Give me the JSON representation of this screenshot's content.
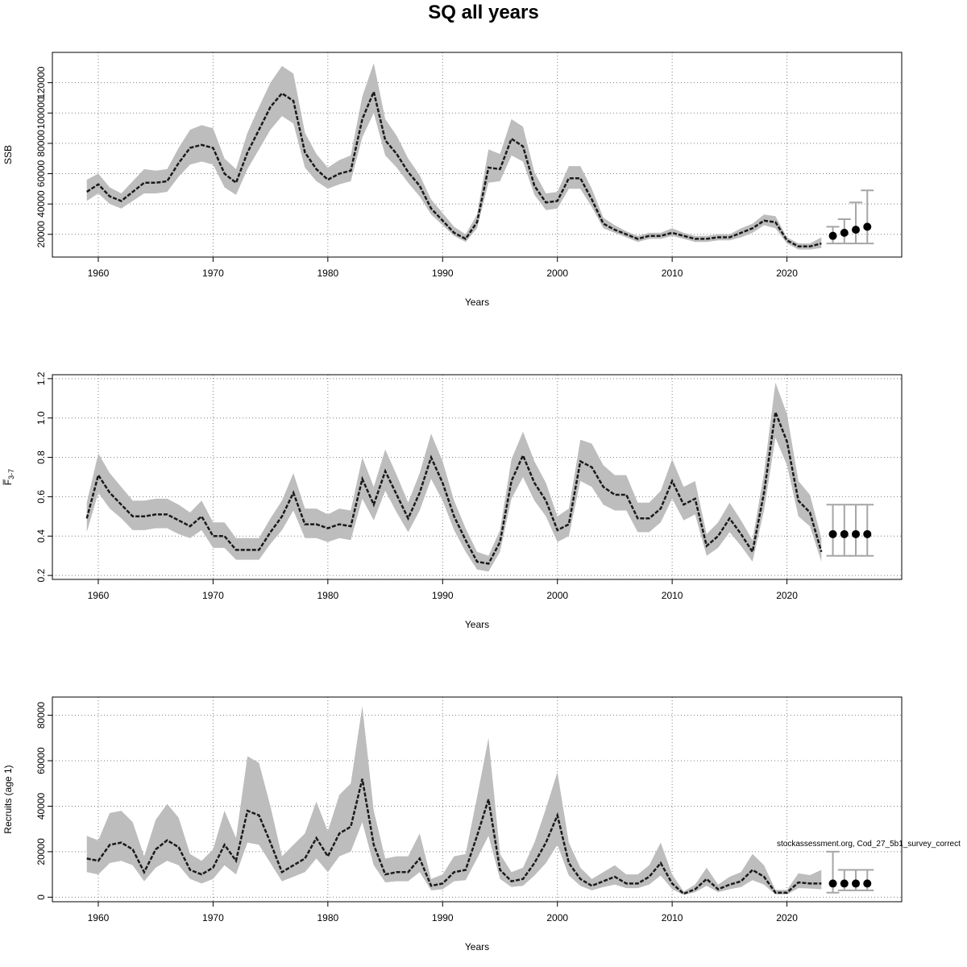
{
  "title": "SQ all years",
  "watermark": "stockassessment.org, Cod_27_5b1_survey_correct",
  "chart_data": [
    {
      "type": "line",
      "name": "ssb-panel",
      "ylabel": "SSB",
      "xlabel": "Years",
      "xlim": [
        1956,
        2030
      ],
      "ylim": [
        5000,
        140000
      ],
      "xticks": [
        1960,
        1970,
        1980,
        1990,
        2000,
        2010,
        2020
      ],
      "yticks": [
        20000,
        40000,
        60000,
        80000,
        100000,
        120000
      ],
      "grid": true,
      "x": [
        1959,
        1960,
        1961,
        1962,
        1963,
        1964,
        1965,
        1966,
        1967,
        1968,
        1969,
        1970,
        1971,
        1972,
        1973,
        1974,
        1975,
        1976,
        1977,
        1978,
        1979,
        1980,
        1981,
        1982,
        1983,
        1984,
        1985,
        1986,
        1987,
        1988,
        1989,
        1990,
        1991,
        1992,
        1993,
        1994,
        1995,
        1996,
        1997,
        1998,
        1999,
        2000,
        2001,
        2002,
        2003,
        2004,
        2005,
        2006,
        2007,
        2008,
        2009,
        2010,
        2011,
        2012,
        2013,
        2014,
        2015,
        2016,
        2017,
        2018,
        2019,
        2020,
        2021,
        2022,
        2023
      ],
      "y": [
        48000,
        53000,
        45000,
        42000,
        48000,
        54000,
        54000,
        55000,
        67000,
        77000,
        79000,
        77000,
        60000,
        54000,
        74000,
        89000,
        104000,
        113000,
        108000,
        74000,
        63000,
        56000,
        60000,
        62000,
        96000,
        114000,
        82000,
        73000,
        61000,
        52000,
        37000,
        29000,
        21000,
        17000,
        28000,
        64000,
        63000,
        83000,
        78000,
        52000,
        41000,
        42000,
        57000,
        57000,
        43000,
        27000,
        23000,
        20000,
        17000,
        19000,
        19000,
        21000,
        19000,
        17000,
        17000,
        18000,
        18000,
        21000,
        24000,
        29000,
        28000,
        16000,
        12000,
        12000,
        14000
      ],
      "lower": [
        42000,
        47000,
        40000,
        37000,
        42000,
        47000,
        47000,
        48000,
        58000,
        66000,
        68000,
        66000,
        51000,
        46000,
        63000,
        76000,
        89000,
        98000,
        93000,
        64000,
        55000,
        50000,
        53000,
        55000,
        84000,
        100000,
        72000,
        64000,
        54000,
        45000,
        33000,
        26000,
        19000,
        15000,
        24000,
        54000,
        55000,
        72000,
        68000,
        46000,
        36000,
        37000,
        50000,
        50000,
        38000,
        24000,
        21000,
        18000,
        15000,
        17000,
        17000,
        19000,
        17000,
        15000,
        15000,
        16000,
        16000,
        18000,
        21000,
        26000,
        24000,
        14000,
        10000,
        10000,
        11000
      ],
      "upper": [
        56000,
        60000,
        51000,
        47000,
        55000,
        63000,
        62000,
        63000,
        77000,
        89000,
        92000,
        90000,
        70000,
        63000,
        87000,
        104000,
        120000,
        131000,
        126000,
        87000,
        73000,
        64000,
        69000,
        72000,
        111000,
        133000,
        96000,
        85000,
        70000,
        59000,
        43000,
        34000,
        25000,
        20000,
        33000,
        76000,
        73000,
        96000,
        91000,
        61000,
        47000,
        48000,
        65000,
        65000,
        50000,
        31000,
        26000,
        22000,
        19000,
        21000,
        21000,
        24000,
        21000,
        19000,
        19000,
        20000,
        20000,
        24000,
        27000,
        33000,
        32000,
        18000,
        14000,
        14000,
        18000
      ],
      "forecast": {
        "x": [
          2024,
          2025,
          2026,
          2027
        ],
        "y": [
          19000,
          21000,
          23000,
          25000
        ],
        "lower": [
          14000,
          14000,
          14000,
          14000
        ],
        "upper": [
          25000,
          30000,
          41000,
          49000
        ]
      }
    },
    {
      "type": "line",
      "name": "f-panel",
      "ylabel": "F̅",
      "ylabel_sub": "3-7",
      "xlabel": "Years",
      "xlim": [
        1956,
        2030
      ],
      "ylim": [
        0.18,
        1.22
      ],
      "xticks": [
        1960,
        1970,
        1980,
        1990,
        2000,
        2010,
        2020
      ],
      "yticks": [
        0.2,
        0.4,
        0.6,
        0.8,
        1.0,
        1.2
      ],
      "ytick_labels": [
        "0.2",
        "0.4",
        "0.6",
        "0.8",
        "1.0",
        "1.2"
      ],
      "grid": true,
      "x": [
        1959,
        1960,
        1961,
        1962,
        1963,
        1964,
        1965,
        1966,
        1967,
        1968,
        1969,
        1970,
        1971,
        1972,
        1973,
        1974,
        1975,
        1976,
        1977,
        1978,
        1979,
        1980,
        1981,
        1982,
        1983,
        1984,
        1985,
        1986,
        1987,
        1988,
        1989,
        1990,
        1991,
        1992,
        1993,
        1994,
        1995,
        1996,
        1997,
        1998,
        1999,
        2000,
        2001,
        2002,
        2003,
        2004,
        2005,
        2006,
        2007,
        2008,
        2009,
        2010,
        2011,
        2012,
        2013,
        2014,
        2015,
        2016,
        2017,
        2018,
        2019,
        2020,
        2021,
        2022,
        2023
      ],
      "y": [
        0.49,
        0.71,
        0.62,
        0.56,
        0.5,
        0.5,
        0.51,
        0.51,
        0.48,
        0.45,
        0.5,
        0.4,
        0.4,
        0.33,
        0.33,
        0.33,
        0.42,
        0.5,
        0.62,
        0.46,
        0.46,
        0.44,
        0.46,
        0.45,
        0.69,
        0.56,
        0.73,
        0.61,
        0.49,
        0.62,
        0.8,
        0.67,
        0.5,
        0.38,
        0.27,
        0.26,
        0.37,
        0.68,
        0.81,
        0.67,
        0.58,
        0.43,
        0.46,
        0.78,
        0.75,
        0.65,
        0.61,
        0.61,
        0.49,
        0.49,
        0.54,
        0.68,
        0.56,
        0.59,
        0.35,
        0.4,
        0.49,
        0.41,
        0.32,
        0.62,
        1.03,
        0.88,
        0.58,
        0.52,
        0.32
      ],
      "lower": [
        0.42,
        0.62,
        0.54,
        0.49,
        0.43,
        0.43,
        0.44,
        0.44,
        0.41,
        0.39,
        0.43,
        0.34,
        0.34,
        0.28,
        0.28,
        0.28,
        0.36,
        0.43,
        0.53,
        0.39,
        0.39,
        0.37,
        0.39,
        0.38,
        0.59,
        0.48,
        0.63,
        0.52,
        0.42,
        0.53,
        0.69,
        0.58,
        0.43,
        0.32,
        0.23,
        0.22,
        0.32,
        0.59,
        0.7,
        0.58,
        0.5,
        0.37,
        0.4,
        0.68,
        0.65,
        0.56,
        0.53,
        0.53,
        0.42,
        0.42,
        0.47,
        0.59,
        0.48,
        0.51,
        0.3,
        0.34,
        0.42,
        0.35,
        0.27,
        0.53,
        0.9,
        0.76,
        0.5,
        0.45,
        0.27
      ],
      "upper": [
        0.57,
        0.82,
        0.72,
        0.65,
        0.58,
        0.58,
        0.59,
        0.59,
        0.56,
        0.52,
        0.58,
        0.47,
        0.47,
        0.39,
        0.39,
        0.39,
        0.49,
        0.58,
        0.72,
        0.54,
        0.54,
        0.51,
        0.54,
        0.53,
        0.8,
        0.65,
        0.84,
        0.71,
        0.57,
        0.72,
        0.92,
        0.78,
        0.58,
        0.44,
        0.32,
        0.3,
        0.43,
        0.79,
        0.93,
        0.78,
        0.67,
        0.5,
        0.54,
        0.89,
        0.87,
        0.76,
        0.71,
        0.71,
        0.57,
        0.57,
        0.63,
        0.79,
        0.65,
        0.68,
        0.41,
        0.47,
        0.57,
        0.48,
        0.38,
        0.72,
        1.18,
        1.02,
        0.68,
        0.61,
        0.39
      ],
      "forecast": {
        "x": [
          2024,
          2025,
          2026,
          2027
        ],
        "y": [
          0.41,
          0.41,
          0.41,
          0.41
        ],
        "lower": [
          0.3,
          0.3,
          0.3,
          0.3
        ],
        "upper": [
          0.56,
          0.56,
          0.56,
          0.56
        ]
      }
    },
    {
      "type": "line",
      "name": "recruits-panel",
      "ylabel": "Recruits (age 1)",
      "xlabel": "Years",
      "xlim": [
        1956,
        2030
      ],
      "ylim": [
        -2000,
        88000
      ],
      "xticks": [
        1960,
        1970,
        1980,
        1990,
        2000,
        2010,
        2020
      ],
      "yticks": [
        0,
        20000,
        40000,
        60000,
        80000
      ],
      "grid": true,
      "x": [
        1959,
        1960,
        1961,
        1962,
        1963,
        1964,
        1965,
        1966,
        1967,
        1968,
        1969,
        1970,
        1971,
        1972,
        1973,
        1974,
        1975,
        1976,
        1977,
        1978,
        1979,
        1980,
        1981,
        1982,
        1983,
        1984,
        1985,
        1986,
        1987,
        1988,
        1989,
        1990,
        1991,
        1992,
        1993,
        1994,
        1995,
        1996,
        1997,
        1998,
        1999,
        2000,
        2001,
        2002,
        2003,
        2004,
        2005,
        2006,
        2007,
        2008,
        2009,
        2010,
        2011,
        2012,
        2013,
        2014,
        2015,
        2016,
        2017,
        2018,
        2019,
        2020,
        2021,
        2022,
        2023
      ],
      "y": [
        17000,
        16000,
        23000,
        24000,
        21000,
        11000,
        21000,
        25000,
        22000,
        12000,
        10000,
        13000,
        23000,
        16000,
        38000,
        36000,
        24000,
        11000,
        14000,
        17000,
        26000,
        18000,
        28000,
        31000,
        52000,
        23000,
        10000,
        11000,
        11000,
        17000,
        5000,
        6000,
        11000,
        12000,
        27000,
        43000,
        12000,
        7000,
        8000,
        15000,
        24000,
        36000,
        15000,
        8000,
        5000,
        7000,
        9000,
        6000,
        6000,
        9000,
        15000,
        6000,
        1500,
        3500,
        8000,
        3500,
        5500,
        7000,
        12000,
        9000,
        2000,
        2000,
        6500,
        6000,
        6000
      ],
      "lower": [
        11000,
        10000,
        15000,
        16000,
        14000,
        7000,
        13000,
        16000,
        14000,
        8000,
        6000,
        8000,
        14000,
        10000,
        24000,
        23000,
        15000,
        7000,
        9000,
        11000,
        17000,
        11000,
        18000,
        20000,
        33000,
        14000,
        6500,
        7000,
        7000,
        11000,
        3000,
        3500,
        7000,
        7500,
        17000,
        27000,
        8000,
        4500,
        5000,
        9500,
        15000,
        23000,
        9500,
        5000,
        3000,
        4500,
        5500,
        4000,
        4000,
        5500,
        9500,
        3500,
        1000,
        2200,
        5000,
        2200,
        3500,
        4500,
        7500,
        5500,
        1200,
        1200,
        4000,
        3800,
        3500
      ],
      "upper": [
        27000,
        25000,
        37000,
        38000,
        33000,
        18000,
        34000,
        41000,
        35000,
        19000,
        16000,
        21000,
        38000,
        26000,
        62000,
        59000,
        40000,
        18000,
        23000,
        28000,
        42000,
        29000,
        45000,
        50000,
        84000,
        38000,
        17000,
        18000,
        18000,
        28000,
        8000,
        10000,
        18000,
        19000,
        44000,
        70000,
        19000,
        11000,
        13000,
        24000,
        39000,
        55000,
        24000,
        13000,
        8000,
        11000,
        14000,
        10000,
        10000,
        14000,
        24000,
        10000,
        2500,
        5500,
        13000,
        5500,
        9000,
        11000,
        19000,
        14000,
        3200,
        3200,
        10500,
        9700,
        12000
      ],
      "forecast": {
        "x": [
          2024,
          2025,
          2026,
          2027
        ],
        "y": [
          6000,
          6000,
          6000,
          6000
        ],
        "lower": [
          2000,
          3000,
          3000,
          3000
        ],
        "upper": [
          20000,
          12000,
          12000,
          12000
        ]
      }
    }
  ]
}
